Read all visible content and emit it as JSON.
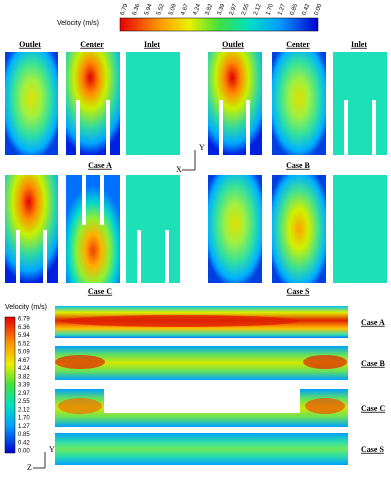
{
  "colorbar": {
    "title": "Velocity (m/s)",
    "labels": [
      "6.79",
      "6.36",
      "5.94",
      "5.52",
      "5.09",
      "4.67",
      "4.24",
      "3.82",
      "3.39",
      "2.97",
      "2.55",
      "2.12",
      "1.70",
      "1.27",
      "0.85",
      "0.42",
      "0.00"
    ]
  },
  "top_panels": {
    "columns": [
      "Outlet",
      "Center",
      "Inlet",
      "Outlet",
      "Center",
      "Inlet"
    ],
    "cases": [
      "Case A",
      "Case B",
      "Case C",
      "Case S"
    ],
    "axes": [
      "Y",
      "X"
    ]
  },
  "bottom_panels": {
    "colorbar_title": "Velocity (m/s)",
    "cases": [
      "Case A",
      "Case B",
      "Case C",
      "Case S"
    ],
    "axes": [
      "Y",
      "Z"
    ]
  }
}
